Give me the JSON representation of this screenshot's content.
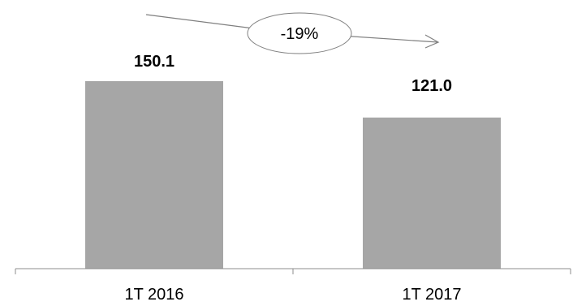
{
  "chart_data": {
    "type": "bar",
    "categories": [
      "1T 2016",
      "1T 2017"
    ],
    "values": [
      150.1,
      121.0
    ],
    "data_labels": [
      "150.1",
      "121.0"
    ],
    "title": "",
    "xlabel": "",
    "ylabel": "",
    "ylim": [
      0,
      180
    ],
    "grid": false,
    "legend": "none",
    "bar_color": "#a6a6a6",
    "annotation": {
      "text": "-19%",
      "shape": "ellipse-with-arrow"
    }
  }
}
